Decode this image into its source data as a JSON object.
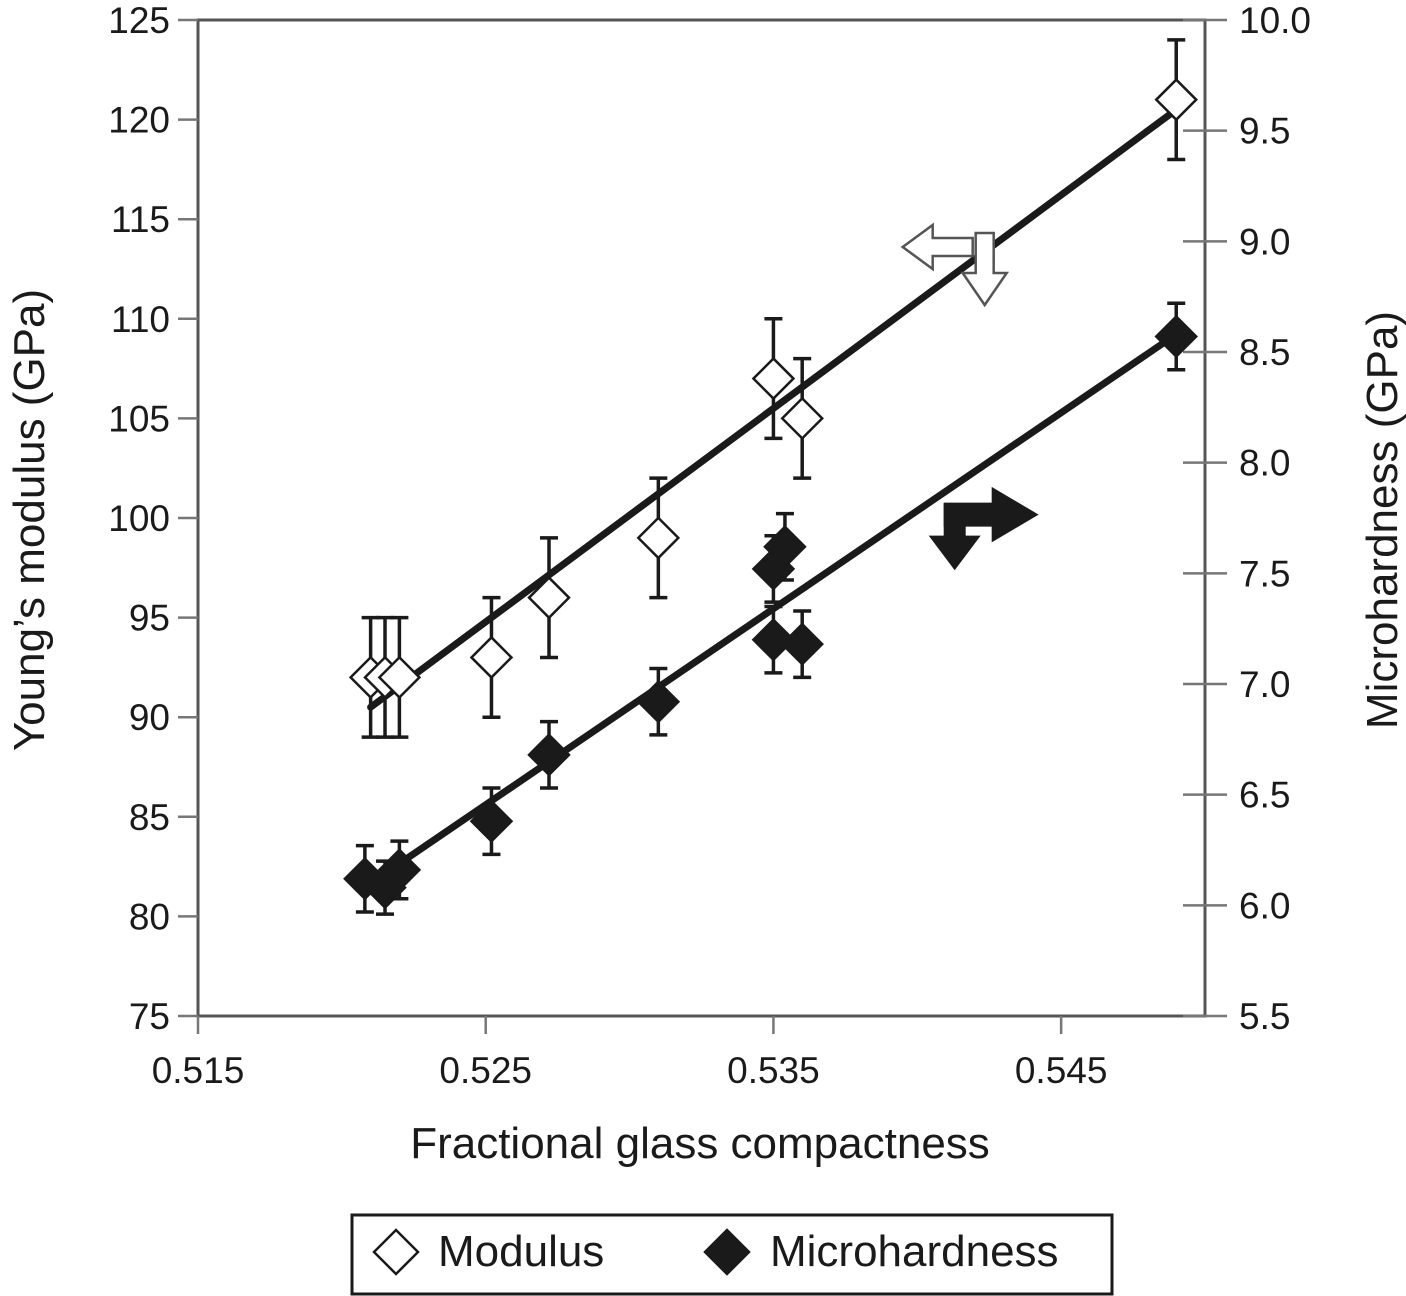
{
  "chart_data": {
    "type": "scatter",
    "xlabel": "Fractional glass compactness",
    "ylabel_left": "Young’s modulus (GPa)",
    "ylabel_right": "Microhardness (GPa)",
    "xlim": [
      0.515,
      0.55
    ],
    "ylim_left": [
      75,
      125
    ],
    "ylim_right": [
      5.5,
      10.0
    ],
    "x_ticks": [
      "0.515",
      "0.525",
      "0.535",
      "0.545"
    ],
    "x_tick_values": [
      0.515,
      0.525,
      0.535,
      0.545
    ],
    "y_left_ticks": [
      "75",
      "80",
      "85",
      "90",
      "95",
      "100",
      "105",
      "110",
      "115",
      "120",
      "125"
    ],
    "y_left_tick_values": [
      75,
      80,
      85,
      90,
      95,
      100,
      105,
      110,
      115,
      120,
      125
    ],
    "y_right_ticks": [
      "5.5",
      "6.0",
      "6.5",
      "7.0",
      "7.5",
      "8.0",
      "8.5",
      "9.0",
      "9.5",
      "10.0"
    ],
    "y_right_tick_values": [
      5.5,
      6.0,
      6.5,
      7.0,
      7.5,
      8.0,
      8.5,
      9.0,
      9.5,
      10.0
    ],
    "grid": false,
    "legend_position": "bottom-center",
    "series": [
      {
        "name": "Modulus",
        "axis": "left",
        "marker": "open-diamond",
        "color": "#1a1a1a",
        "points": [
          {
            "x": 0.521,
            "y": 92,
            "err": 3
          },
          {
            "x": 0.5215,
            "y": 92,
            "err": 3
          },
          {
            "x": 0.522,
            "y": 92,
            "err": 3
          },
          {
            "x": 0.5252,
            "y": 93,
            "err": 3
          },
          {
            "x": 0.5272,
            "y": 96,
            "err": 3
          },
          {
            "x": 0.531,
            "y": 99,
            "err": 3
          },
          {
            "x": 0.535,
            "y": 107,
            "err": 3
          },
          {
            "x": 0.536,
            "y": 105,
            "err": 3
          },
          {
            "x": 0.549,
            "y": 121,
            "err": 3
          }
        ],
        "fit": [
          [
            0.521,
            90.5
          ],
          [
            0.549,
            120.5
          ]
        ]
      },
      {
        "name": "Microhardness",
        "axis": "right",
        "marker": "filled-diamond",
        "color": "#1a1a1a",
        "points": [
          {
            "x": 0.5208,
            "y": 6.12,
            "err": 0.15
          },
          {
            "x": 0.5215,
            "y": 6.08,
            "err": 0.12
          },
          {
            "x": 0.522,
            "y": 6.16,
            "err": 0.13
          },
          {
            "x": 0.5252,
            "y": 6.38,
            "err": 0.15
          },
          {
            "x": 0.5272,
            "y": 6.68,
            "err": 0.15
          },
          {
            "x": 0.531,
            "y": 6.92,
            "err": 0.15
          },
          {
            "x": 0.535,
            "y": 7.52,
            "err": 0.15
          },
          {
            "x": 0.5354,
            "y": 7.62,
            "err": 0.15
          },
          {
            "x": 0.535,
            "y": 7.2,
            "err": 0.15
          },
          {
            "x": 0.536,
            "y": 7.18,
            "err": 0.15
          },
          {
            "x": 0.549,
            "y": 8.57,
            "err": 0.15
          }
        ],
        "fit": [
          [
            0.521,
            6.1
          ],
          [
            0.549,
            8.58
          ]
        ]
      }
    ],
    "annotations": [
      {
        "kind": "open-arrows",
        "x": 0.5413,
        "y_left": 112.5,
        "pointing": [
          "left",
          "down"
        ]
      },
      {
        "kind": "filled-arrows",
        "x": 0.5413,
        "y_right": 7.72,
        "pointing": [
          "down",
          "right"
        ]
      }
    ]
  },
  "legend": {
    "modulus_label": "Modulus",
    "microhardness_label": "Microhardness"
  }
}
